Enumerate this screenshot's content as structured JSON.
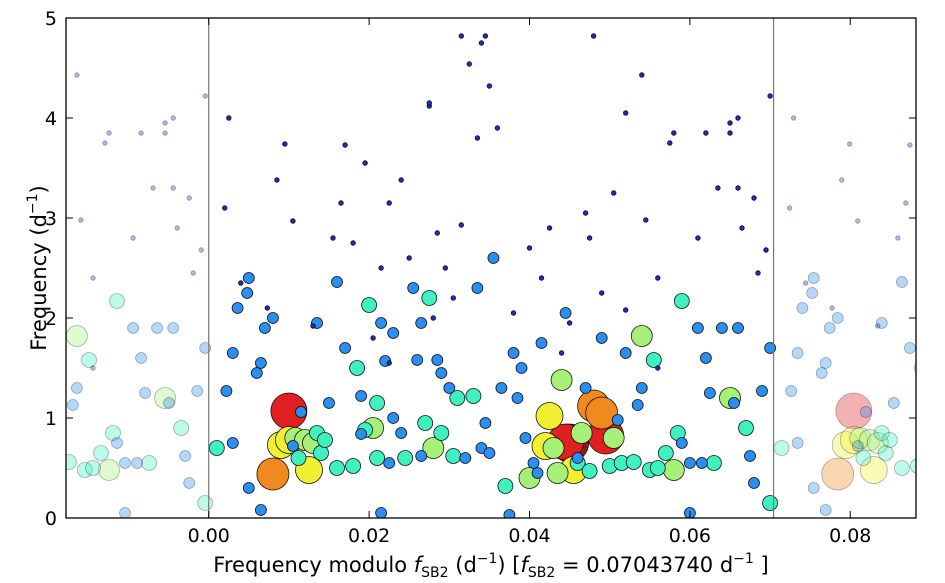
{
  "chart_data": {
    "type": "scatter",
    "title": "",
    "xlabel": "Frequency modulo f_SB2 (d^-1) [f_SB2 = 0.07043740 d^-1]",
    "xlabel_parts": {
      "prefix": "Frequency modulo ",
      "f_main": "f",
      "f_sub": "SB2",
      "unit_open": " (d",
      "unit_exp": "−1",
      "unit_close": ") [",
      "eq": " = 0.07043740 d",
      "eq_exp": "−1",
      "end": " ]"
    },
    "ylabel": "Frequency (d^-1)",
    "ylabel_parts": {
      "main": "Frequency (d",
      "exp": "−1",
      "end": ")"
    },
    "xlim": [
      -0.0178,
      0.0882
    ],
    "ylim": [
      0,
      5
    ],
    "xticks": [
      0.0,
      0.02,
      0.04,
      0.06,
      0.08
    ],
    "xtick_labels": [
      "0.00",
      "0.02",
      "0.04",
      "0.06",
      "0.08"
    ],
    "yticks": [
      0,
      1,
      2,
      3,
      4,
      5
    ],
    "ytick_labels": [
      "0",
      "1",
      "2",
      "3",
      "4",
      "5"
    ],
    "period_lines_x": [
      0.0,
      0.0704374
    ],
    "period": 0.0704374,
    "size_legend": "marker size and color scale with amplitude (small/blue = low, large/red = high)",
    "points": [
      [
        0.003,
        0.75,
        1
      ],
      [
        0.0048,
        2.25,
        1
      ],
      [
        0.0065,
        0.08,
        1
      ],
      [
        0.001,
        0.7,
        2
      ],
      [
        0.0022,
        1.27,
        1
      ],
      [
        0.003,
        1.65,
        1
      ],
      [
        0.0036,
        2.1,
        1
      ],
      [
        0.005,
        2.4,
        1
      ],
      [
        0.006,
        1.45,
        1
      ],
      [
        0.007,
        1.9,
        1
      ],
      [
        0.008,
        2.0,
        1
      ],
      [
        0.008,
        0.44,
        5
      ],
      [
        0.009,
        0.73,
        4
      ],
      [
        0.01,
        1.07,
        6
      ],
      [
        0.01,
        0.78,
        4
      ],
      [
        0.0108,
        0.8,
        3
      ],
      [
        0.0112,
        0.6,
        2
      ],
      [
        0.0115,
        1.06,
        1
      ],
      [
        0.012,
        0.78,
        3
      ],
      [
        0.0125,
        0.48,
        4
      ],
      [
        0.013,
        0.75,
        3
      ],
      [
        0.0135,
        0.85,
        2
      ],
      [
        0.014,
        0.65,
        2
      ],
      [
        0.0145,
        0.78,
        2
      ],
      [
        0.015,
        1.15,
        1
      ],
      [
        0.016,
        0.5,
        2
      ],
      [
        0.016,
        2.36,
        1
      ],
      [
        0.017,
        1.7,
        1
      ],
      [
        0.018,
        0.52,
        2
      ],
      [
        0.0185,
        1.5,
        2
      ],
      [
        0.019,
        1.22,
        1
      ],
      [
        0.0195,
        0.88,
        2
      ],
      [
        0.02,
        2.13,
        2
      ],
      [
        0.0205,
        0.9,
        3
      ],
      [
        0.021,
        1.15,
        2
      ],
      [
        0.021,
        0.6,
        2
      ],
      [
        0.0215,
        1.95,
        1
      ],
      [
        0.022,
        1.57,
        1
      ],
      [
        0.0225,
        0.55,
        1
      ],
      [
        0.023,
        1.85,
        1
      ],
      [
        0.024,
        0.85,
        1
      ],
      [
        0.0245,
        0.6,
        2
      ],
      [
        0.0255,
        2.3,
        1
      ],
      [
        0.026,
        1.58,
        1
      ],
      [
        0.0265,
        1.95,
        1
      ],
      [
        0.027,
        0.95,
        2
      ],
      [
        0.0275,
        2.2,
        2
      ],
      [
        0.028,
        0.7,
        3
      ],
      [
        0.0285,
        1.58,
        1
      ],
      [
        0.029,
        0.85,
        2
      ],
      [
        0.03,
        1.3,
        1
      ],
      [
        0.0305,
        0.62,
        2
      ],
      [
        0.031,
        1.2,
        2
      ],
      [
        0.032,
        0.6,
        1
      ],
      [
        0.033,
        1.22,
        2
      ],
      [
        0.0335,
        2.3,
        1
      ],
      [
        0.034,
        0.7,
        1
      ],
      [
        0.035,
        0.65,
        1
      ],
      [
        0.0355,
        2.6,
        1
      ],
      [
        0.0365,
        1.3,
        1
      ],
      [
        0.037,
        0.32,
        2
      ],
      [
        0.0375,
        0.03,
        1
      ],
      [
        0.038,
        1.65,
        1
      ],
      [
        0.039,
        1.5,
        1
      ],
      [
        0.0395,
        0.8,
        1
      ],
      [
        0.04,
        0.4,
        3
      ],
      [
        0.041,
        0.45,
        1
      ],
      [
        0.0415,
        1.75,
        1
      ],
      [
        0.042,
        0.72,
        4
      ],
      [
        0.0425,
        1.02,
        4
      ],
      [
        0.043,
        0.7,
        3
      ],
      [
        0.0435,
        0.45,
        3
      ],
      [
        0.044,
        1.38,
        3
      ],
      [
        0.0445,
        0.76,
        6
      ],
      [
        0.045,
        0.75,
        7
      ],
      [
        0.0455,
        0.48,
        4
      ],
      [
        0.046,
        0.55,
        2
      ],
      [
        0.0465,
        0.85,
        3
      ],
      [
        0.047,
        1.3,
        1
      ],
      [
        0.0475,
        0.47,
        2
      ],
      [
        0.048,
        1.12,
        5
      ],
      [
        0.049,
        1.05,
        5
      ],
      [
        0.0495,
        0.82,
        6
      ],
      [
        0.05,
        0.52,
        2
      ],
      [
        0.0505,
        0.8,
        3
      ],
      [
        0.051,
        0.98,
        1
      ],
      [
        0.0515,
        0.55,
        2
      ],
      [
        0.052,
        1.65,
        1
      ],
      [
        0.053,
        0.56,
        2
      ],
      [
        0.0535,
        1.13,
        1
      ],
      [
        0.054,
        1.82,
        3
      ],
      [
        0.055,
        0.48,
        2
      ],
      [
        0.0555,
        1.58,
        2
      ],
      [
        0.056,
        0.5,
        2
      ],
      [
        0.057,
        0.65,
        2
      ],
      [
        0.058,
        0.48,
        3
      ],
      [
        0.0585,
        0.85,
        2
      ],
      [
        0.059,
        2.17,
        2
      ],
      [
        0.06,
        0.55,
        1
      ],
      [
        0.061,
        1.9,
        1
      ],
      [
        0.0615,
        0.55,
        1
      ],
      [
        0.062,
        1.6,
        1
      ],
      [
        0.063,
        0.55,
        2
      ],
      [
        0.064,
        1.9,
        1
      ],
      [
        0.065,
        1.2,
        3
      ],
      [
        0.0655,
        1.15,
        1
      ],
      [
        0.066,
        1.9,
        1
      ],
      [
        0.067,
        0.9,
        2
      ],
      [
        0.068,
        0.35,
        1
      ],
      [
        0.069,
        1.27,
        1
      ],
      [
        0.07,
        0.15,
        2
      ],
      [
        0.07,
        1.7,
        1
      ],
      [
        0.005,
        0.3,
        1
      ],
      [
        0.0065,
        1.55,
        1
      ],
      [
        0.0105,
        0.72,
        1
      ],
      [
        0.0135,
        1.95,
        1
      ],
      [
        0.019,
        0.84,
        1
      ],
      [
        0.023,
        1.0,
        1
      ],
      [
        0.0265,
        0.62,
        1
      ],
      [
        0.029,
        1.45,
        1
      ],
      [
        0.0345,
        0.95,
        1
      ],
      [
        0.0385,
        1.2,
        1
      ],
      [
        0.0405,
        0.55,
        1
      ],
      [
        0.0445,
        2.05,
        1
      ],
      [
        0.046,
        0.6,
        1
      ],
      [
        0.049,
        1.8,
        1
      ],
      [
        0.054,
        1.3,
        1
      ],
      [
        0.059,
        0.75,
        1
      ],
      [
        0.0625,
        1.25,
        1
      ],
      [
        0.0675,
        0.62,
        1
      ],
      [
        0.0215,
        0.05,
        1
      ],
      [
        0.06,
        0.05,
        1
      ],
      [
        0.0073,
        2.1,
        0
      ],
      [
        0.0085,
        3.38,
        0
      ],
      [
        0.0095,
        3.74,
        0
      ],
      [
        0.0105,
        2.97,
        0
      ],
      [
        0.013,
        1.92,
        0
      ],
      [
        0.0165,
        3.15,
        0
      ],
      [
        0.018,
        2.75,
        0
      ],
      [
        0.0205,
        1.8,
        0
      ],
      [
        0.0215,
        2.5,
        0
      ],
      [
        0.0225,
        3.15,
        0
      ],
      [
        0.024,
        3.38,
        0
      ],
      [
        0.025,
        2.6,
        0
      ],
      [
        0.0275,
        4.12,
        0
      ],
      [
        0.028,
        2.0,
        0
      ],
      [
        0.0285,
        2.85,
        0
      ],
      [
        0.0295,
        2.5,
        0
      ],
      [
        0.0305,
        2.2,
        0
      ],
      [
        0.0315,
        2.93,
        0
      ],
      [
        0.0325,
        4.54,
        0
      ],
      [
        0.0335,
        3.8,
        0
      ],
      [
        0.034,
        4.75,
        0
      ],
      [
        0.035,
        4.32,
        0
      ],
      [
        0.036,
        3.9,
        0
      ],
      [
        0.038,
        2.05,
        0
      ],
      [
        0.04,
        2.7,
        0
      ],
      [
        0.0415,
        2.4,
        0
      ],
      [
        0.0425,
        2.9,
        0
      ],
      [
        0.045,
        1.95,
        0
      ],
      [
        0.047,
        3.05,
        0
      ],
      [
        0.0475,
        2.8,
        0
      ],
      [
        0.049,
        2.25,
        0
      ],
      [
        0.0505,
        3.25,
        0
      ],
      [
        0.052,
        2.08,
        0
      ],
      [
        0.054,
        4.43,
        0
      ],
      [
        0.0545,
        2.98,
        0
      ],
      [
        0.056,
        2.4,
        0
      ],
      [
        0.0575,
        3.75,
        0
      ],
      [
        0.058,
        3.85,
        0
      ],
      [
        0.061,
        2.8,
        0
      ],
      [
        0.062,
        3.85,
        0
      ],
      [
        0.0635,
        3.3,
        0
      ],
      [
        0.065,
        3.95,
        0
      ],
      [
        0.066,
        3.3,
        0
      ],
      [
        0.0665,
        2.9,
        0
      ],
      [
        0.068,
        3.2,
        0
      ],
      [
        0.0695,
        2.68,
        0
      ],
      [
        0.07,
        4.22,
        0
      ],
      [
        0.0025,
        4.0,
        0
      ],
      [
        0.017,
        3.73,
        0
      ],
      [
        0.0275,
        4.15,
        0
      ],
      [
        0.0315,
        4.82,
        0
      ],
      [
        0.0345,
        4.82,
        0
      ],
      [
        0.048,
        4.82,
        0
      ],
      [
        0.052,
        4.05,
        0
      ],
      [
        0.065,
        3.85,
        0
      ],
      [
        0.066,
        4.0,
        0
      ],
      [
        0.002,
        3.1,
        0
      ],
      [
        0.004,
        2.35,
        0
      ],
      [
        0.0155,
        2.8,
        0
      ],
      [
        0.0195,
        3.55,
        0
      ],
      [
        0.0225,
        1.55,
        0
      ],
      [
        0.044,
        1.65,
        0
      ],
      [
        0.056,
        1.5,
        0
      ],
      [
        0.0685,
        2.45,
        0
      ]
    ]
  }
}
